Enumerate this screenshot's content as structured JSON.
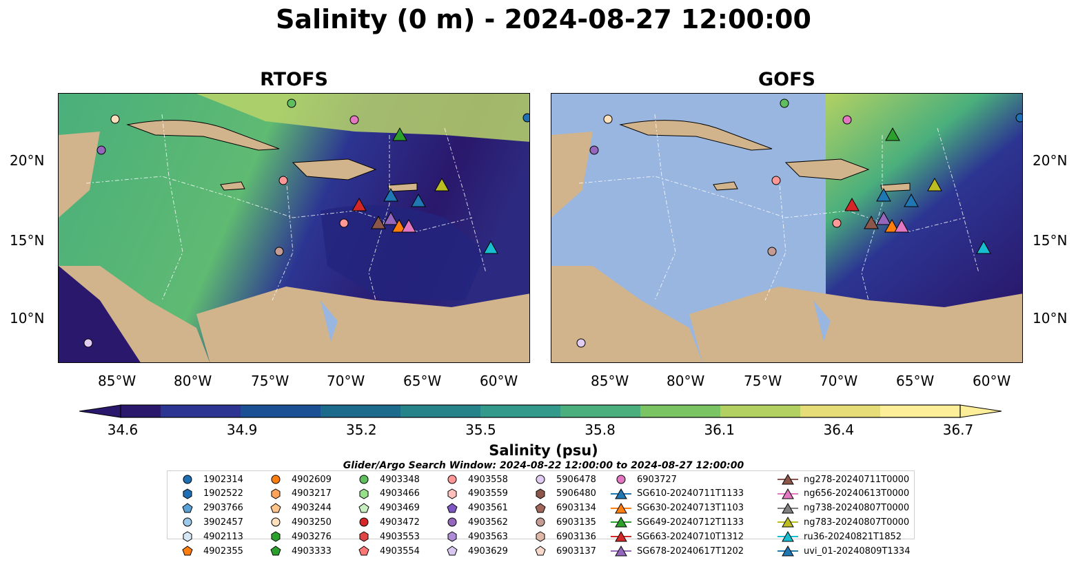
{
  "title": "Salinity (0 m) - 2024-08-27 12:00:00",
  "panels": [
    {
      "title": "RTOFS",
      "land_color": "#d2b48c",
      "nodata_color": "#98b6e0"
    },
    {
      "title": "GOFS",
      "land_color": "#d2b48c",
      "nodata_color": "#98b6e0"
    }
  ],
  "lat_labels": [
    "20°N",
    "15°N",
    "10°N"
  ],
  "lon_labels": [
    "85°W",
    "80°W",
    "75°W",
    "70°W",
    "65°W",
    "60°W"
  ],
  "colorbar": {
    "label": "Salinity (psu)",
    "ticks": [
      "34.6",
      "34.9",
      "35.2",
      "35.5",
      "35.8",
      "36.1",
      "36.4",
      "36.7"
    ],
    "colormap": "haline",
    "colors": [
      "#2a186c",
      "#2c3592",
      "#1b5194",
      "#1c6b8c",
      "#26838a",
      "#33998a",
      "#4aaf7c",
      "#7bc463",
      "#b3d163",
      "#e6dc78",
      "#fdee99"
    ]
  },
  "search_window": "Glider/Argo Search Window: 2024-08-22 12:00:00 to 2024-08-27 12:00:00",
  "legend": [
    {
      "label": "1902314",
      "marker": "circle",
      "color": "#1f6fb4"
    },
    {
      "label": "1902522",
      "marker": "hexagon",
      "color": "#1f6fb4"
    },
    {
      "label": "2903766",
      "marker": "pentagon",
      "color": "#5aa1d6"
    },
    {
      "label": "3902457",
      "marker": "circle",
      "color": "#9cc8ea"
    },
    {
      "label": "4902113",
      "marker": "hexagon",
      "color": "#d6e8f6"
    },
    {
      "label": "4902355",
      "marker": "pentagon",
      "color": "#ff7f0e"
    },
    {
      "label": "4902609",
      "marker": "circle",
      "color": "#ff7f0e"
    },
    {
      "label": "4903217",
      "marker": "hexagon",
      "color": "#ffa25a"
    },
    {
      "label": "4903244",
      "marker": "pentagon",
      "color": "#ffc48a"
    },
    {
      "label": "4903250",
      "marker": "circle",
      "color": "#ffe0bd"
    },
    {
      "label": "4903276",
      "marker": "hexagon",
      "color": "#2ca02c"
    },
    {
      "label": "4903333",
      "marker": "pentagon",
      "color": "#2ca02c"
    },
    {
      "label": "4903348",
      "marker": "circle",
      "color": "#5fbf5f"
    },
    {
      "label": "4903466",
      "marker": "hexagon",
      "color": "#98df8a"
    },
    {
      "label": "4903469",
      "marker": "pentagon",
      "color": "#c8efc0"
    },
    {
      "label": "4903472",
      "marker": "circle",
      "color": "#d62728"
    },
    {
      "label": "4903553",
      "marker": "hexagon",
      "color": "#e04545"
    },
    {
      "label": "4903554",
      "marker": "pentagon",
      "color": "#ff7878"
    },
    {
      "label": "4903558",
      "marker": "circle",
      "color": "#ff9896"
    },
    {
      "label": "4903559",
      "marker": "hexagon",
      "color": "#ffc0be"
    },
    {
      "label": "4903561",
      "marker": "pentagon",
      "color": "#7e57c2"
    },
    {
      "label": "4903562",
      "marker": "circle",
      "color": "#9467bd"
    },
    {
      "label": "4903563",
      "marker": "hexagon",
      "color": "#ae8dd6"
    },
    {
      "label": "4903629",
      "marker": "pentagon",
      "color": "#d8c8f0"
    },
    {
      "label": "5906478",
      "marker": "circle",
      "color": "#e2cdf2"
    },
    {
      "label": "5906480",
      "marker": "hexagon",
      "color": "#8c564b"
    },
    {
      "label": "6903134",
      "marker": "pentagon",
      "color": "#a0665a"
    },
    {
      "label": "6903135",
      "marker": "circle",
      "color": "#c49c94"
    },
    {
      "label": "6903136",
      "marker": "hexagon",
      "color": "#e0b8a8"
    },
    {
      "label": "6903137",
      "marker": "pentagon",
      "color": "#f7d9cc"
    },
    {
      "label": "6903727",
      "marker": "circle",
      "color": "#e377c2"
    },
    {
      "label": "SG610-20240711T1133",
      "marker": "triangle",
      "color": "#1f77b4",
      "line": true
    },
    {
      "label": "SG630-20240713T1103",
      "marker": "triangle",
      "color": "#ff7f0e",
      "line": true
    },
    {
      "label": "SG649-20240712T1133",
      "marker": "triangle",
      "color": "#2ca02c",
      "line": true
    },
    {
      "label": "SG663-20240710T1312",
      "marker": "triangle",
      "color": "#d62728",
      "line": true
    },
    {
      "label": "SG678-20240617T1202",
      "marker": "triangle",
      "color": "#9467bd",
      "line": true
    },
    {
      "label": "ng278-20240711T0000",
      "marker": "triangle",
      "color": "#8c564b",
      "line": true
    },
    {
      "label": "ng656-20240613T0000",
      "marker": "triangle",
      "color": "#e377c2",
      "line": true
    },
    {
      "label": "ng738-20240807T0000",
      "marker": "triangle",
      "color": "#7f7f7f",
      "line": true
    },
    {
      "label": "ng783-20240807T0000",
      "marker": "triangle",
      "color": "#bcbd22",
      "line": true
    },
    {
      "label": "ru36-20240821T1852",
      "marker": "triangle",
      "color": "#17becf",
      "line": true
    },
    {
      "label": "uvi_01-20240809T1334",
      "marker": "triangle",
      "color": "#1f77b4",
      "line": true
    }
  ]
}
